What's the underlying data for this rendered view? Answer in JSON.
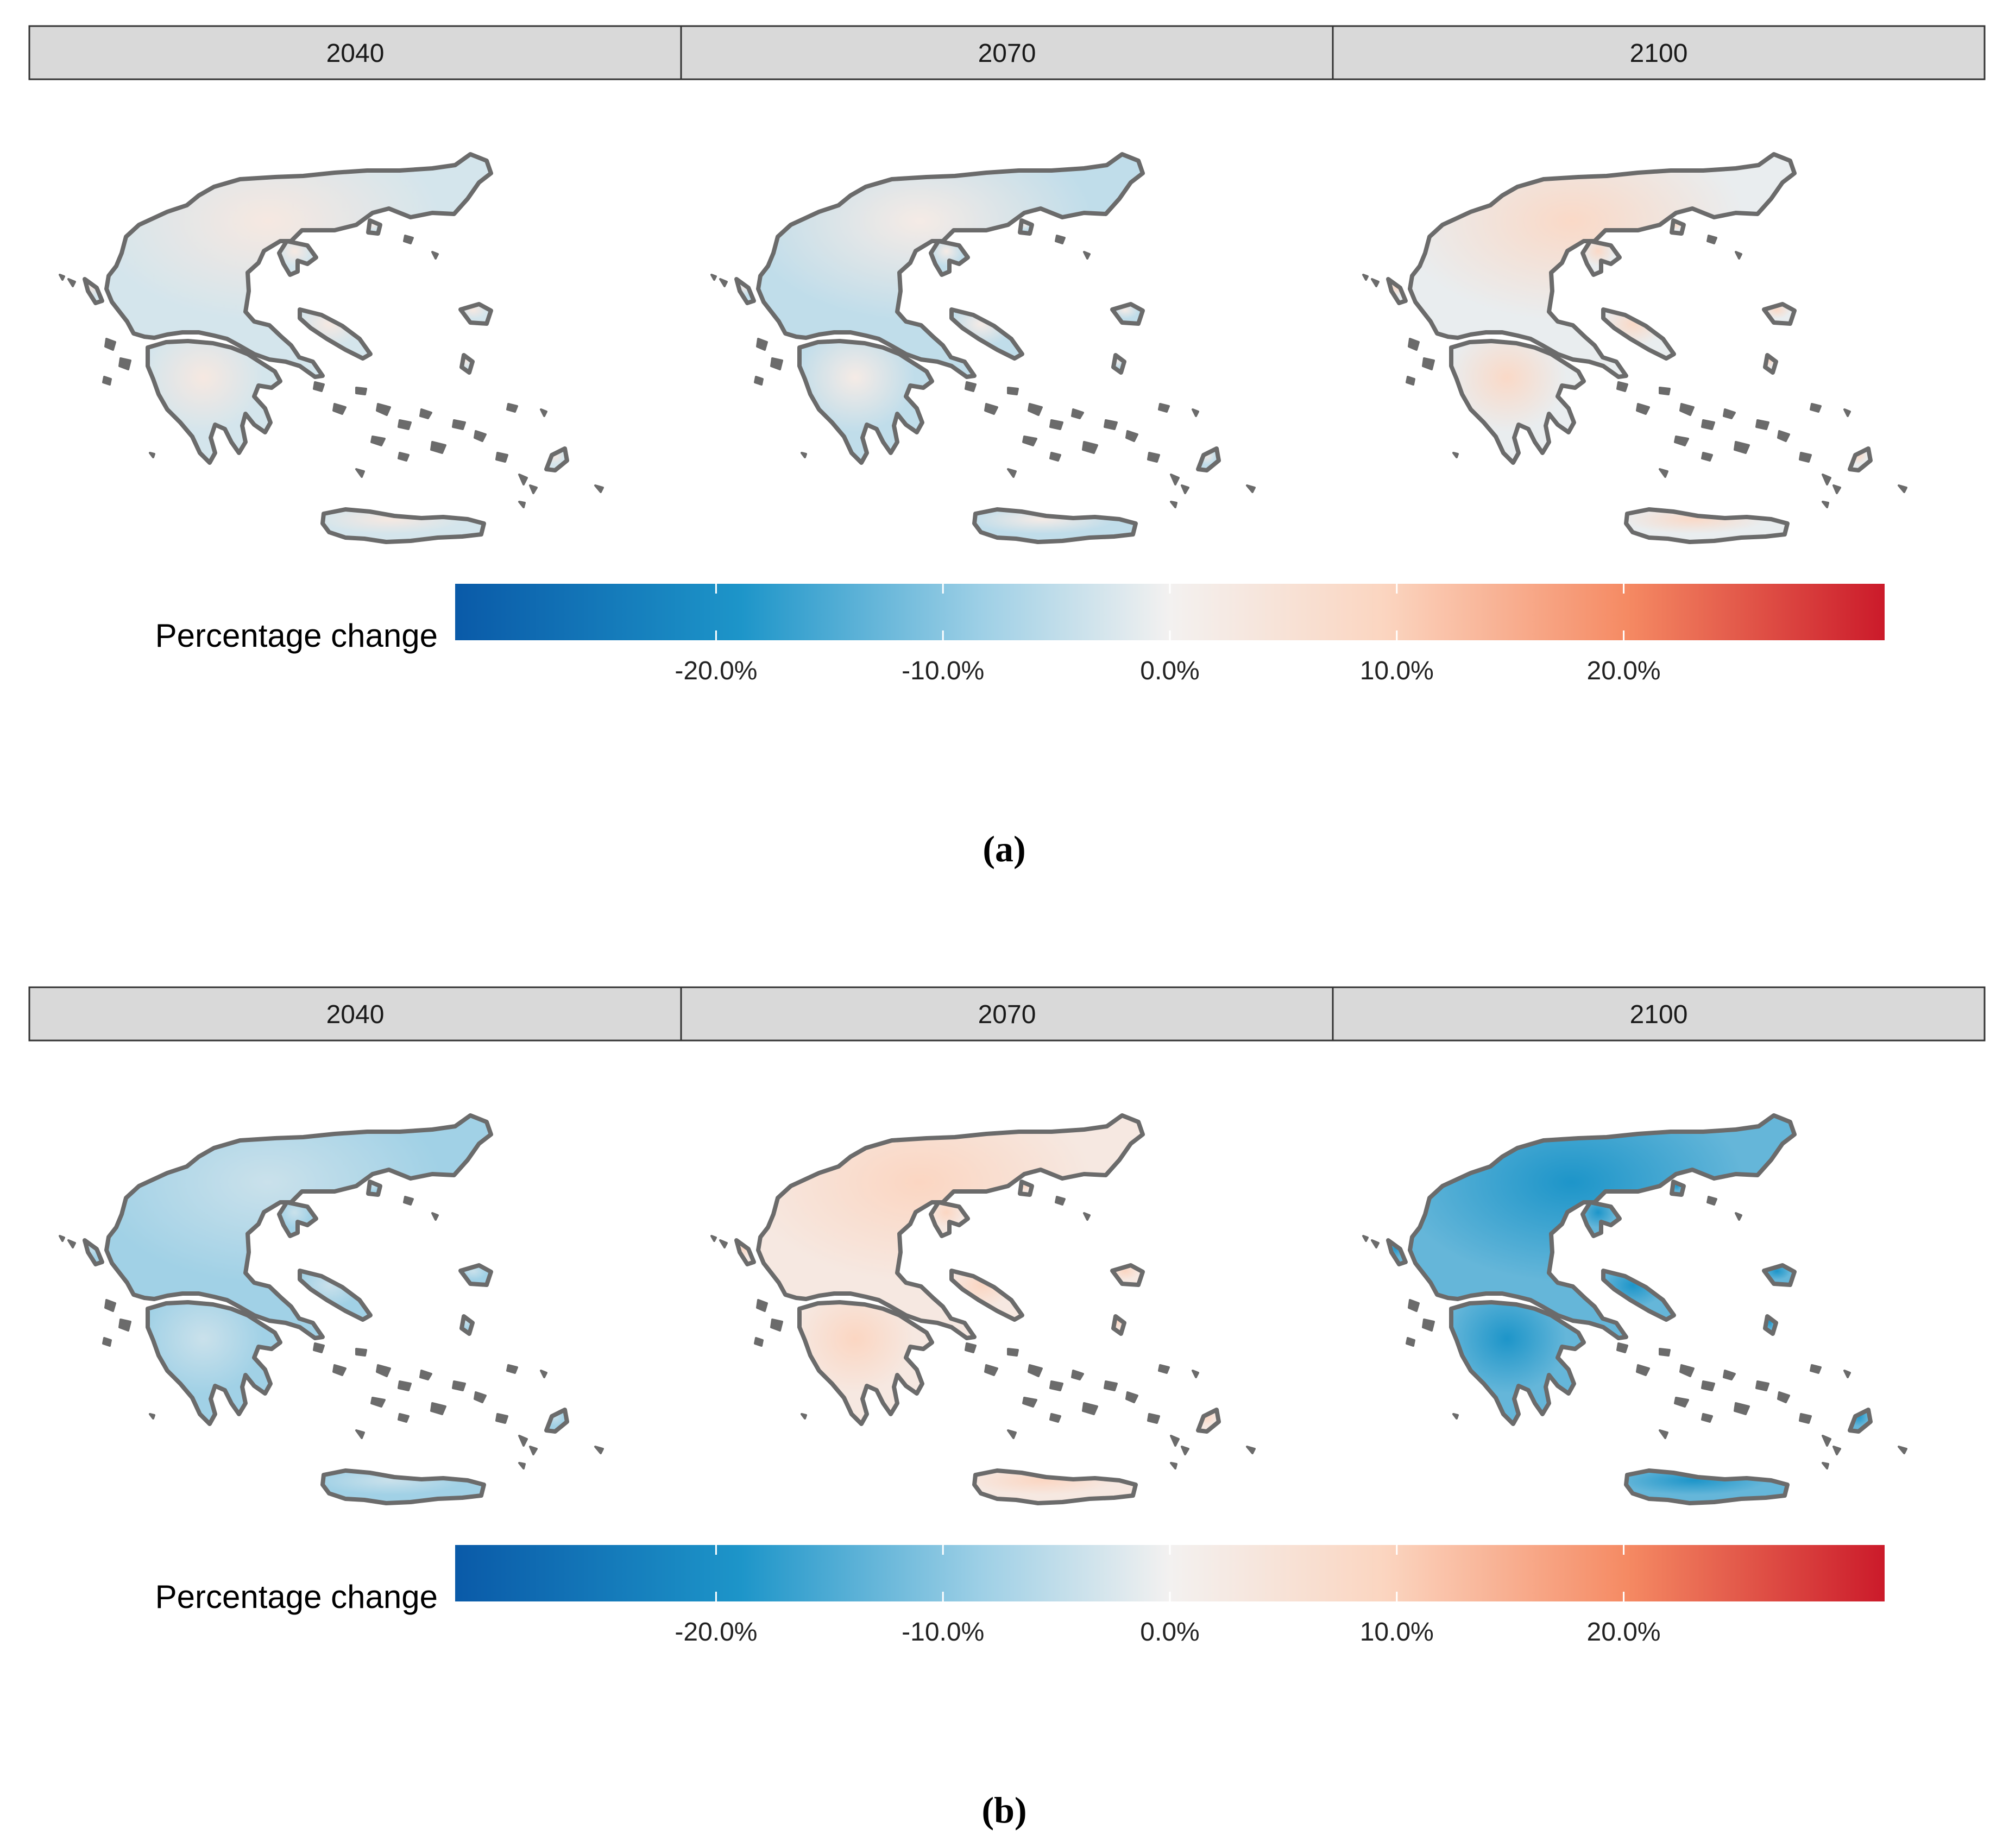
{
  "colors": {
    "strip_fill": "#d9d9d9",
    "strip_border": "#333333",
    "outline": "#6b6b6b",
    "scale": [
      "#0a5aa8",
      "#1d95c9",
      "#9fd0e6",
      "#f3f1f0",
      "#fbd5c0",
      "#f58a63",
      "#cb1a2a"
    ]
  },
  "panels": [
    {
      "caption": "(a)",
      "facets": [
        {
          "year": "2040",
          "fill_icon": "greece-map-icon",
          "pattern": "mostly light blue, slight warm core",
          "fill_value": -3,
          "hotspot_value": 3
        },
        {
          "year": "2070",
          "fill_icon": "greece-map-icon",
          "pattern": "light blue",
          "fill_value": -5,
          "hotspot_value": 2
        },
        {
          "year": "2100",
          "fill_icon": "greece-map-icon",
          "pattern": "warm core in centre",
          "fill_value": -1,
          "hotspot_value": 8
        }
      ],
      "legend": {
        "title": "Percentage change",
        "ticks": [
          "-20.0%",
          "-10.0%",
          "0.0%",
          "10.0%",
          "20.0%"
        ],
        "tick_values": [
          -20,
          -10,
          0,
          10,
          20
        ],
        "range": [
          -31.5,
          31.5
        ]
      }
    },
    {
      "caption": "(b)",
      "facets": [
        {
          "year": "2040",
          "fill_icon": "greece-map-icon",
          "pattern": "blue",
          "fill_value": -8,
          "hotspot_value": -4
        },
        {
          "year": "2070",
          "fill_icon": "greece-map-icon",
          "pattern": "light red",
          "fill_value": 3,
          "hotspot_value": 9
        },
        {
          "year": "2100",
          "fill_icon": "greece-map-icon",
          "pattern": "strong blue",
          "fill_value": -13,
          "hotspot_value": -19
        }
      ],
      "legend": {
        "title": "Percentage change",
        "ticks": [
          "-20.0%",
          "-10.0%",
          "0.0%",
          "10.0%",
          "20.0%"
        ],
        "tick_values": [
          -20,
          -10,
          0,
          10,
          20
        ],
        "range": [
          -31.5,
          31.5
        ]
      }
    }
  ]
}
